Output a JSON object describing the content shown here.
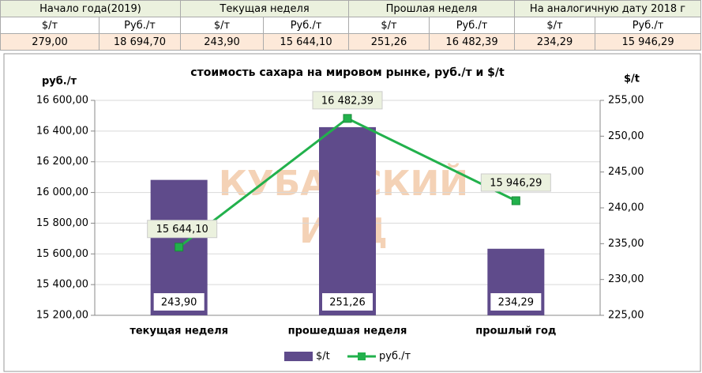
{
  "table": {
    "header": [
      "Начало года(2019)",
      "Текущая неделя",
      "Прошлая неделя",
      "На аналогичную дату 2018 г"
    ],
    "subheader": [
      "$/т",
      "Руб./т",
      "$/т",
      "Руб./т",
      "$/т",
      "Руб./т",
      "$/т",
      "Руб./т"
    ],
    "rows": [
      [
        "279,00",
        "18 694,70",
        "243,90",
        "15 644,10",
        "251,26",
        "16 482,39",
        "234,29",
        "15 946,29"
      ]
    ]
  },
  "chart_data": {
    "type": "bar-line",
    "title": "стоимость сахара на мировом рынке, руб./т и $/t",
    "watermark": [
      "КУБАНСКИЙ",
      "ИАЦ"
    ],
    "y_label": "руб./т",
    "y2_label": "$/t",
    "categories": [
      "текущая неделя",
      "прошедшая неделя",
      "прошлый год"
    ],
    "series": [
      {
        "name": "$/t",
        "type": "bar",
        "axis": "y2",
        "color": "#5f4b8b",
        "values": [
          243.9,
          251.26,
          234.29
        ],
        "value_labels": [
          "243,90",
          "251,26",
          "234,29"
        ]
      },
      {
        "name": "руб./т",
        "type": "line",
        "axis": "y",
        "color": "#22b14c",
        "values": [
          15644.1,
          16482.39,
          15946.29
        ],
        "value_labels": [
          "15 644,10",
          "16 482,39",
          "15 946,29"
        ]
      }
    ],
    "ylim": [
      15200,
      16600
    ],
    "yticks": [
      {
        "value": 15200,
        "label": "15 200,00"
      },
      {
        "value": 15400,
        "label": "15 400,00"
      },
      {
        "value": 15600,
        "label": "15 600,00"
      },
      {
        "value": 15800,
        "label": "15 800,00"
      },
      {
        "value": 16000,
        "label": "16 000,00"
      },
      {
        "value": 16200,
        "label": "16 200,00"
      },
      {
        "value": 16400,
        "label": "16 400,00"
      },
      {
        "value": 16600,
        "label": "16 600,00"
      }
    ],
    "y2lim": [
      225,
      255
    ],
    "y2ticks": [
      {
        "value": 225,
        "label": "225,00"
      },
      {
        "value": 230,
        "label": "230,00"
      },
      {
        "value": 235,
        "label": "235,00"
      },
      {
        "value": 240,
        "label": "240,00"
      },
      {
        "value": 245,
        "label": "245,00"
      },
      {
        "value": 250,
        "label": "250,00"
      },
      {
        "value": 255,
        "label": "255,00"
      }
    ],
    "grid": true,
    "legend": "bottom"
  }
}
